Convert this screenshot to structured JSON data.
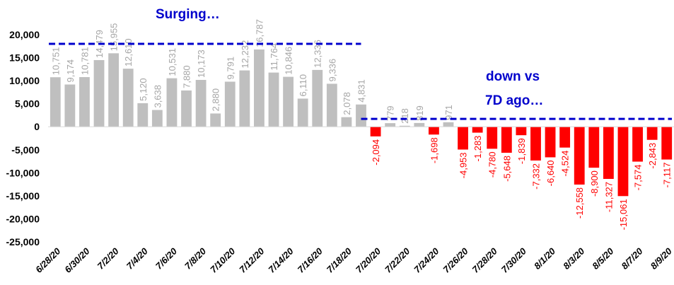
{
  "chart_data": {
    "type": "bar",
    "categories": [
      "6/28/20",
      "6/29/20",
      "6/30/20",
      "7/1/20",
      "7/2/20",
      "7/3/20",
      "7/4/20",
      "7/5/20",
      "7/6/20",
      "7/7/20",
      "7/8/20",
      "7/9/20",
      "7/10/20",
      "7/11/20",
      "7/12/20",
      "7/13/20",
      "7/14/20",
      "7/15/20",
      "7/16/20",
      "7/17/20",
      "7/18/20",
      "7/19/20",
      "7/20/20",
      "7/21/20",
      "7/22/20",
      "7/23/20",
      "7/24/20",
      "7/25/20",
      "7/26/20",
      "7/27/20",
      "7/28/20",
      "7/29/20",
      "7/30/20",
      "7/31/20",
      "8/1/20",
      "8/2/20",
      "8/3/20",
      "8/4/20",
      "8/5/20",
      "8/6/20",
      "8/7/20",
      "8/8/20",
      "8/9/20"
    ],
    "tick_labels": [
      "6/28/20",
      "6/30/20",
      "7/2/20",
      "7/4/20",
      "7/6/20",
      "7/8/20",
      "7/10/20",
      "7/12/20",
      "7/14/20",
      "7/16/20",
      "7/18/20",
      "7/20/20",
      "7/22/20",
      "7/24/20",
      "7/26/20",
      "7/28/20",
      "7/30/20",
      "8/1/20",
      "8/3/20",
      "8/5/20",
      "8/7/20",
      "8/9/20"
    ],
    "values": [
      10751,
      9174,
      10781,
      14479,
      15955,
      12610,
      5120,
      3638,
      10531,
      7880,
      10173,
      2880,
      9791,
      12232,
      16787,
      11764,
      10846,
      6110,
      12336,
      9336,
      2078,
      4831,
      -2094,
      779,
      218,
      819,
      -1698,
      971,
      -4953,
      -1283,
      -4780,
      -5648,
      -1839,
      -7332,
      -6640,
      -4524,
      -12558,
      -8900,
      -11327,
      -15061,
      -7574,
      -2843,
      -7117
    ],
    "data_labels": [
      "10,751",
      "9,174",
      "10,781",
      "14,479",
      "15,955",
      "12,610",
      "5,120",
      "3,638",
      "10,531",
      "7,880",
      "10,173",
      "2,880",
      "9,791",
      "12,232",
      "16,787",
      "11,764",
      "10,846",
      "6,110",
      "12,336",
      "9,336",
      "2,078",
      "4,831",
      "-2,094",
      "779",
      "218",
      "819",
      "-1,698",
      "971",
      "-4,953",
      "-1,283",
      "-4,780",
      "-5,648",
      "-1,839",
      "-7,332",
      "-6,640",
      "-4,524",
      "-12,558",
      "-8,900",
      "-11,327",
      "-15,061",
      "-7,574",
      "-2,843",
      "-7,117"
    ],
    "ylim": [
      -25000,
      20000
    ],
    "yticks": [
      "-25,000",
      "-20,000",
      "-15,000",
      "-10,000",
      "-5,000",
      "0",
      "5,000",
      "10,000",
      "15,000",
      "20,000"
    ],
    "ytick_values": [
      -25000,
      -20000,
      -15000,
      -10000,
      -5000,
      0,
      5000,
      10000,
      15000,
      20000
    ],
    "title": "",
    "xlabel": "",
    "ylabel": "",
    "grid": false,
    "legend": "none",
    "colors": {
      "positive": "#bfbfbf",
      "negative": "#ff0000",
      "reference_line": "#0000cc",
      "callout": "#0000cc",
      "positive_label": "#a6a6a6",
      "negative_label": "#ff0000"
    },
    "reference_lines": [
      {
        "value": 18000,
        "from": "6/28/20",
        "to": "7/19/20"
      },
      {
        "value": 1700,
        "from": "7/19/20",
        "to": "8/9/20"
      }
    ],
    "annotations": {
      "surging": "Surging…",
      "down_line1": "down vs",
      "down_line2": "7D ago…"
    }
  }
}
